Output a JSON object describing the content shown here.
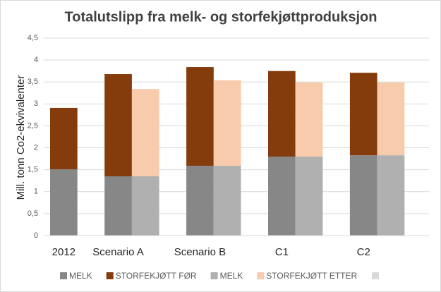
{
  "chart_data": {
    "type": "stacked_grouped_bar",
    "title": "Totalutslipp fra melk- og storfekjøttproduksjon",
    "y_label": "Mill. tonn Co2-ekvivalenter",
    "categories": [
      "2012",
      "Scenario A",
      "Scenario B",
      "C1",
      "C2"
    ],
    "series": [
      {
        "name": "MELK",
        "color": "#878787",
        "stack": 0,
        "values": [
          1.51,
          1.35,
          1.59,
          1.8,
          1.83
        ]
      },
      {
        "name": "STORFEKJØTT FØR",
        "color": "#843c0c",
        "stack": 0,
        "values": [
          1.4,
          2.33,
          2.25,
          1.95,
          1.88
        ]
      },
      {
        "name": "MELK",
        "color": "#b0b0b0",
        "stack": 1,
        "values": [
          null,
          1.35,
          1.59,
          1.8,
          1.83
        ]
      },
      {
        "name": "STORFEKJØTT ETTER",
        "color": "#f8cbad",
        "stack": 1,
        "values": [
          null,
          1.99,
          1.95,
          1.69,
          1.66
        ]
      }
    ],
    "ylim": [
      0,
      4.5
    ],
    "yticks": [
      0,
      {
        "value": 0.5,
        "label": "0,5"
      },
      1,
      {
        "value": 1.5,
        "label": "1,5"
      },
      2,
      {
        "value": 2.5,
        "label": "2,5"
      },
      3,
      {
        "value": 3.5,
        "label": "3,5"
      },
      4,
      {
        "value": 4.5,
        "label": "4,5"
      }
    ],
    "grid": true
  }
}
